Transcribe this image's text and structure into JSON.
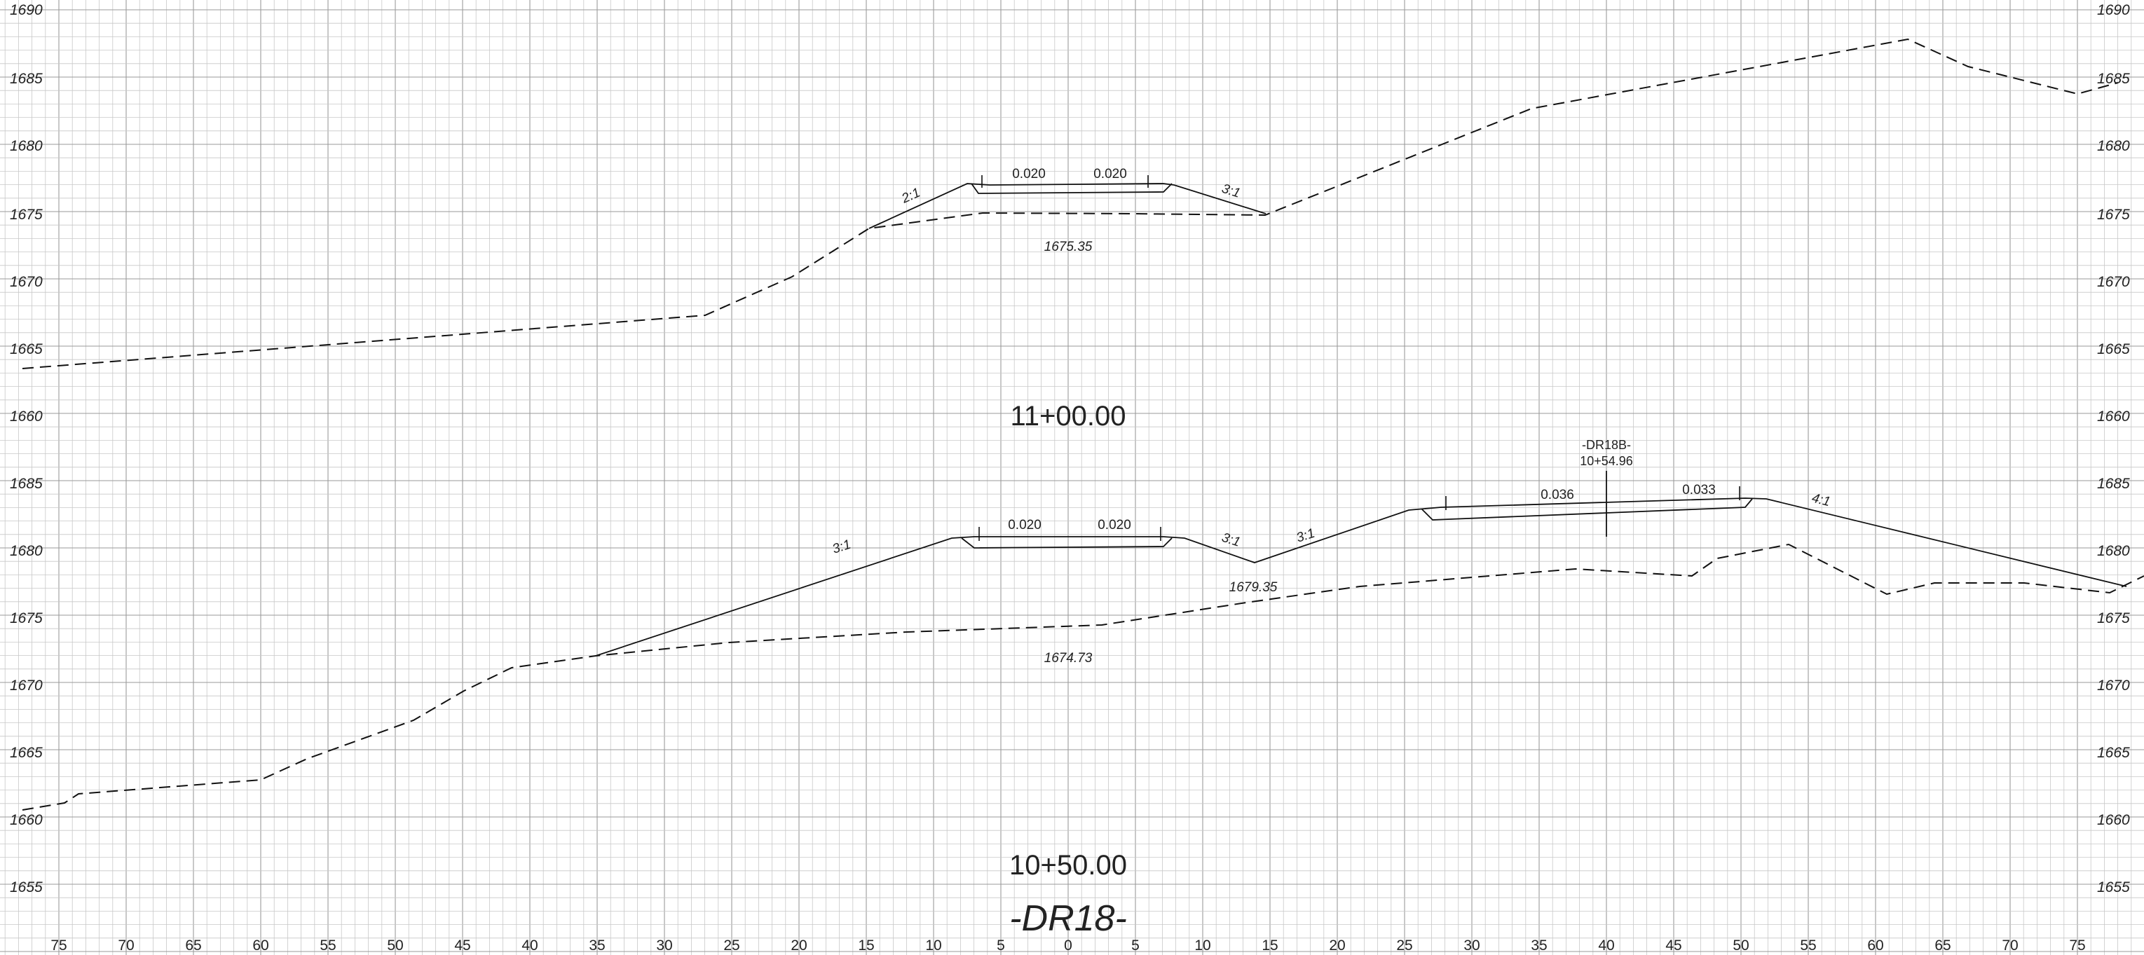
{
  "sheet_title": "-DR18-",
  "elevation_labels": {
    "top_section": [
      "1690",
      "1685",
      "1680",
      "1675",
      "1670",
      "1665",
      "1660"
    ],
    "bottom_section": [
      "1685",
      "1680",
      "1675",
      "1670",
      "1665",
      "1660",
      "1655"
    ]
  },
  "offset_labels": [
    "75",
    "70",
    "65",
    "60",
    "55",
    "50",
    "45",
    "40",
    "35",
    "30",
    "25",
    "20",
    "15",
    "10",
    "5",
    "0",
    "5",
    "10",
    "15",
    "20",
    "25",
    "30",
    "35",
    "40",
    "45",
    "50",
    "55",
    "60",
    "65",
    "70",
    "75"
  ],
  "sections": [
    {
      "station": "11+00.00",
      "ground_elevation": "1675.35",
      "cross_slopes": [
        "0.020",
        "0.020"
      ],
      "side_slopes": [
        "2:1",
        "3:1"
      ]
    },
    {
      "station": "10+50.00",
      "ground_elevations": [
        "1679.35",
        "1674.73"
      ],
      "cross_slopes": [
        "0.020",
        "0.020",
        "0.036",
        "0.033"
      ],
      "side_slopes": [
        "3:1",
        "3:1",
        "3:1",
        "4:1"
      ],
      "alignment_crossing": {
        "name": "-DR18B-",
        "station": "10+54.96"
      }
    }
  ],
  "colors": {
    "paper": "#ffffff",
    "grid_minor": "#c8c8c8",
    "grid_major": "#9a9a9a",
    "line": "#111111"
  }
}
